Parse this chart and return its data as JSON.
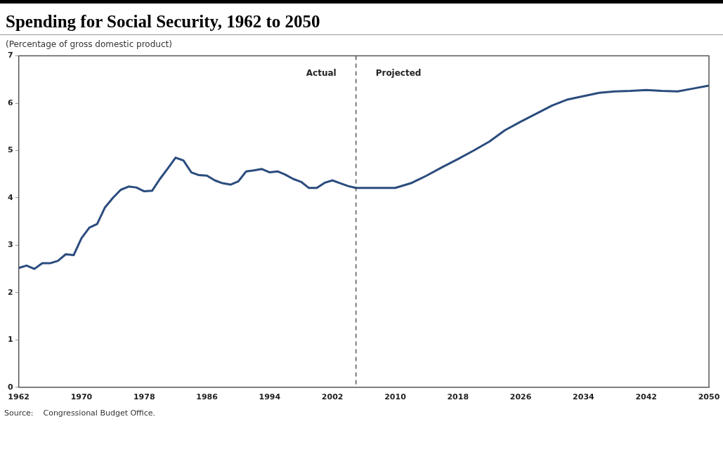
{
  "chart_data": {
    "type": "line",
    "title": "Spending for Social Security, 1962 to 2050",
    "subtitle": "(Percentage of gross domestic product)",
    "x": [
      1962,
      1963,
      1964,
      1965,
      1966,
      1967,
      1968,
      1969,
      1970,
      1971,
      1972,
      1973,
      1974,
      1975,
      1976,
      1977,
      1978,
      1979,
      1980,
      1981,
      1982,
      1983,
      1984,
      1985,
      1986,
      1987,
      1988,
      1989,
      1990,
      1991,
      1992,
      1993,
      1994,
      1995,
      1996,
      1997,
      1998,
      1999,
      2000,
      2001,
      2002,
      2003,
      2004,
      2005,
      2006,
      2008,
      2010,
      2012,
      2014,
      2016,
      2018,
      2020,
      2022,
      2024,
      2026,
      2028,
      2030,
      2032,
      2034,
      2036,
      2038,
      2040,
      2042,
      2044,
      2046,
      2048,
      2050
    ],
    "series": [
      {
        "color": "#2b4c7e",
        "values": [
          2.52,
          2.57,
          2.5,
          2.62,
          2.62,
          2.67,
          2.81,
          2.79,
          3.15,
          3.37,
          3.45,
          3.8,
          4.0,
          4.17,
          4.24,
          4.22,
          4.14,
          4.15,
          4.4,
          4.62,
          4.85,
          4.79,
          4.54,
          4.48,
          4.47,
          4.37,
          4.31,
          4.28,
          4.35,
          4.56,
          4.58,
          4.61,
          4.54,
          4.56,
          4.49,
          4.4,
          4.34,
          4.21,
          4.21,
          4.32,
          4.37,
          4.31,
          4.25,
          4.21,
          4.21,
          4.21,
          4.21,
          4.31,
          4.47,
          4.65,
          4.82,
          5.0,
          5.19,
          5.43,
          5.61,
          5.78,
          5.95,
          6.08,
          6.15,
          6.22,
          6.25,
          6.26,
          6.28,
          6.26,
          6.25,
          6.31,
          6.37
        ]
      }
    ],
    "xlim": [
      1962,
      2050
    ],
    "xticks": [
      1962,
      1970,
      1978,
      1986,
      1994,
      2002,
      2010,
      2018,
      2026,
      2034,
      2042,
      2050
    ],
    "ylim": [
      0,
      7
    ],
    "yticks": [
      0,
      1,
      2,
      3,
      4,
      5,
      6,
      7
    ],
    "grid": false,
    "legend": false,
    "marker": "none",
    "line_style": "solid",
    "ref_lines": [
      {
        "axis": "x",
        "value": 2005,
        "line_style": "dashed",
        "color": "#333333"
      }
    ],
    "annotations": [
      "Actual",
      "Projected",
      "Source:    Congressional Budget Office."
    ]
  }
}
